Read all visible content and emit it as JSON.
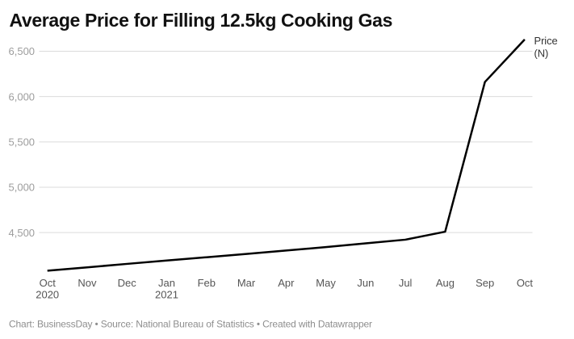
{
  "chart_data": {
    "type": "line",
    "title": "Average Price for Filling 12.5kg Cooking Gas",
    "xlabel": "",
    "ylabel": "",
    "categories": [
      "Oct",
      "Nov",
      "Dec",
      "Jan",
      "Feb",
      "Mar",
      "Apr",
      "May",
      "Jun",
      "Jul",
      "Aug",
      "Sep",
      "Oct"
    ],
    "category_years": [
      {
        "index": 0,
        "year": "2020"
      },
      {
        "index": 3,
        "year": "2021"
      }
    ],
    "series": [
      {
        "name": "Price (N)",
        "values": [
          4080,
          4117,
          4155,
          4192,
          4228,
          4265,
          4302,
          4340,
          4381,
          4422,
          4510,
          6161,
          6630
        ]
      }
    ],
    "yticks": [
      {
        "value": 4500,
        "label": "4,500"
      },
      {
        "value": 5000,
        "label": "5,000"
      },
      {
        "value": 5500,
        "label": "5,500"
      },
      {
        "value": 6000,
        "label": "6,000"
      },
      {
        "value": 6500,
        "label": "6,500"
      }
    ],
    "ylim": [
      4060,
      6670
    ],
    "grid": "horizontal",
    "legend_position": "direct-label-right-of-line-end",
    "direct_label_lines": [
      "Price",
      "(N)"
    ],
    "colors": {
      "background": "#ffffff",
      "line": "#000000",
      "grid": "#dbdbdb",
      "title": "#111111",
      "y_tick": "#9d9d9d",
      "x_tick": "#555555",
      "direct_label": "#333333",
      "footer": "#8e8e8e"
    }
  },
  "footer": {
    "text": "Chart: BusinessDay • Source: National Bureau of Statistics • Created with Datawrapper"
  }
}
